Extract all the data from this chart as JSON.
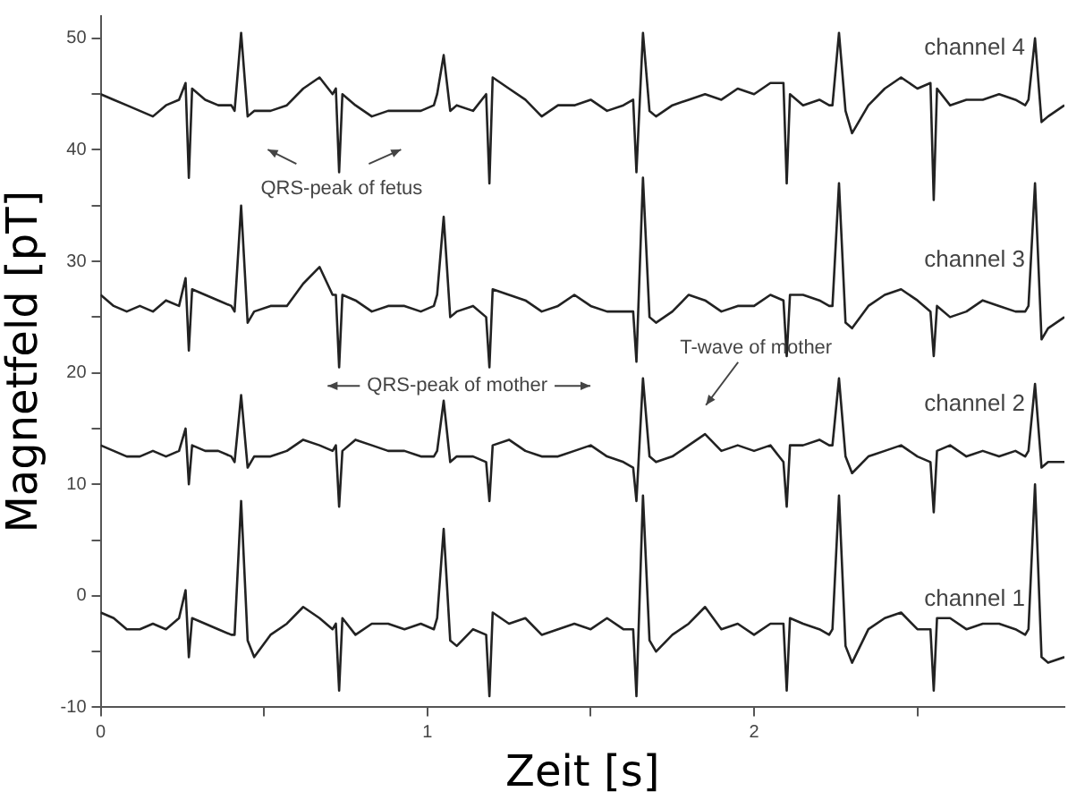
{
  "chart_data": {
    "type": "line",
    "xlabel": "Zeit [s]",
    "ylabel": "Magnetfeld [pT]",
    "x": [
      0,
      0.04,
      0.08,
      0.12,
      0.16,
      0.2,
      0.24,
      0.26,
      0.27,
      0.28,
      0.32,
      0.36,
      0.4,
      0.41,
      0.43,
      0.45,
      0.47,
      0.52,
      0.57,
      0.62,
      0.67,
      0.71,
      0.72,
      0.73,
      0.74,
      0.78,
      0.83,
      0.88,
      0.93,
      0.98,
      1.02,
      1.03,
      1.05,
      1.07,
      1.09,
      1.14,
      1.18,
      1.19,
      1.2,
      1.25,
      1.3,
      1.35,
      1.4,
      1.45,
      1.5,
      1.55,
      1.6,
      1.63,
      1.64,
      1.66,
      1.68,
      1.7,
      1.75,
      1.8,
      1.85,
      1.9,
      1.95,
      2.0,
      2.05,
      2.09,
      2.1,
      2.11,
      2.15,
      2.2,
      2.23,
      2.24,
      2.26,
      2.28,
      2.3,
      2.35,
      2.4,
      2.45,
      2.5,
      2.54,
      2.55,
      2.56,
      2.6,
      2.65,
      2.7,
      2.75,
      2.8,
      2.83,
      2.84,
      2.86,
      2.88,
      2.9,
      2.95
    ],
    "series": [
      {
        "name": "channel 4",
        "color": "#222222",
        "values": [
          45,
          44.5,
          44,
          43.5,
          43,
          44,
          44.5,
          46,
          37.5,
          45.5,
          44.5,
          44,
          44,
          43.5,
          50.5,
          43,
          43.5,
          43.5,
          44,
          45.5,
          46.5,
          45,
          45.5,
          38,
          45,
          44,
          43,
          43.5,
          43.5,
          43.5,
          44,
          45,
          48.5,
          43.5,
          44,
          43.5,
          45,
          37,
          46.5,
          45.5,
          44.5,
          43,
          44,
          44,
          44.5,
          43.5,
          44,
          44.5,
          38,
          50.5,
          43.5,
          43,
          44,
          44.5,
          45,
          44.5,
          45.5,
          45,
          46,
          46,
          37,
          45,
          44,
          44.5,
          44,
          44,
          50.5,
          43.5,
          41.5,
          44,
          45.5,
          46.5,
          45.5,
          46,
          35.5,
          45.5,
          44,
          44.5,
          44.5,
          45,
          44.5,
          44,
          44.5,
          50,
          42.5,
          43,
          44
        ]
      },
      {
        "name": "channel 3",
        "color": "#222222",
        "values": [
          27,
          26,
          25.5,
          26,
          25.5,
          26.5,
          26,
          28.5,
          22,
          27.5,
          27,
          26.5,
          26,
          25.5,
          35,
          24.5,
          25.5,
          26,
          26,
          28,
          29.5,
          27,
          27,
          20.5,
          27,
          26.5,
          25.5,
          26,
          26,
          25.5,
          26,
          27,
          34,
          25,
          25.5,
          26,
          25,
          20.5,
          27.5,
          27,
          26.5,
          25.5,
          26,
          27,
          26,
          25.5,
          25.5,
          25.5,
          21,
          37.5,
          25,
          24.5,
          25.5,
          27,
          26.5,
          25.5,
          26,
          26,
          27,
          26.5,
          21.5,
          27,
          27,
          26.5,
          26,
          26,
          37,
          24.5,
          24,
          26,
          27,
          27.5,
          26.5,
          25.5,
          21.5,
          26,
          25,
          25.5,
          26.5,
          26,
          25.5,
          25.5,
          26,
          37,
          23,
          24,
          25
        ]
      },
      {
        "name": "channel 2",
        "color": "#222222",
        "values": [
          13.5,
          13,
          12.5,
          12.5,
          13,
          12.5,
          13,
          15,
          10,
          13.5,
          13,
          13,
          12.5,
          12,
          18,
          11.5,
          12.5,
          12.5,
          13,
          14,
          13.5,
          13,
          13.5,
          8,
          13,
          14,
          13.5,
          13,
          13,
          12.5,
          12.5,
          13,
          17.5,
          12,
          12.5,
          12.5,
          12,
          8.5,
          13.5,
          14,
          13,
          12.5,
          12.5,
          13,
          13.5,
          12.5,
          12,
          11.5,
          8.5,
          19.5,
          12.5,
          12,
          12.5,
          13.5,
          14.5,
          13,
          13.5,
          13,
          13.5,
          12,
          8,
          13.5,
          13.5,
          14,
          13.5,
          13.5,
          19.5,
          12.5,
          11,
          12.5,
          13,
          13.5,
          12.5,
          12,
          7.5,
          13,
          13.5,
          12.5,
          13,
          12.5,
          13,
          12.5,
          13,
          19,
          11.5,
          12,
          12
        ]
      },
      {
        "name": "channel 1",
        "color": "#222222",
        "values": [
          -1.5,
          -2,
          -3,
          -3,
          -2.5,
          -3,
          -2,
          0.5,
          -5.5,
          -2,
          -2.5,
          -3,
          -3.5,
          -3.5,
          8.5,
          -4,
          -5.5,
          -3.5,
          -2.5,
          -1,
          -2,
          -3,
          -2.5,
          -8.5,
          -2,
          -3.5,
          -2.5,
          -2.5,
          -3,
          -2.5,
          -3,
          -2,
          6,
          -4,
          -4.5,
          -3,
          -3.5,
          -9,
          -1.5,
          -2.5,
          -2,
          -3.5,
          -3,
          -2.5,
          -3,
          -2,
          -3,
          -3,
          -9,
          9,
          -4,
          -5,
          -3.5,
          -2.5,
          -1,
          -3,
          -2.5,
          -3.5,
          -2.5,
          -2.5,
          -8.5,
          -2,
          -2.5,
          -3,
          -3.5,
          -3,
          9,
          -4.5,
          -6,
          -3,
          -2,
          -1.5,
          -3,
          -3,
          -8.5,
          -2,
          -2,
          -3,
          -2.5,
          -2.5,
          -3,
          -3.5,
          -3,
          10,
          -5.5,
          -6,
          -5.5
        ]
      }
    ],
    "xlim": [
      0,
      2.95
    ],
    "xticks": [
      0,
      {
        "value": 0.5,
        "label": null
      },
      1,
      {
        "value": 1.5,
        "label": null
      },
      2,
      {
        "value": 2.5,
        "label": null
      }
    ],
    "ylim": [
      -10,
      52
    ],
    "yticks": [
      -10,
      {
        "value": -5,
        "label": null
      },
      0,
      {
        "value": 5,
        "label": null
      },
      10,
      {
        "value": 15,
        "label": null
      },
      20,
      {
        "value": 25,
        "label": null
      },
      30,
      {
        "value": 35,
        "label": null
      },
      40,
      {
        "value": 45,
        "label": null
      },
      50
    ],
    "annotations": [
      "QRS-peak of fetus",
      "QRS-peak of mother",
      "T-wave of mother"
    ]
  }
}
